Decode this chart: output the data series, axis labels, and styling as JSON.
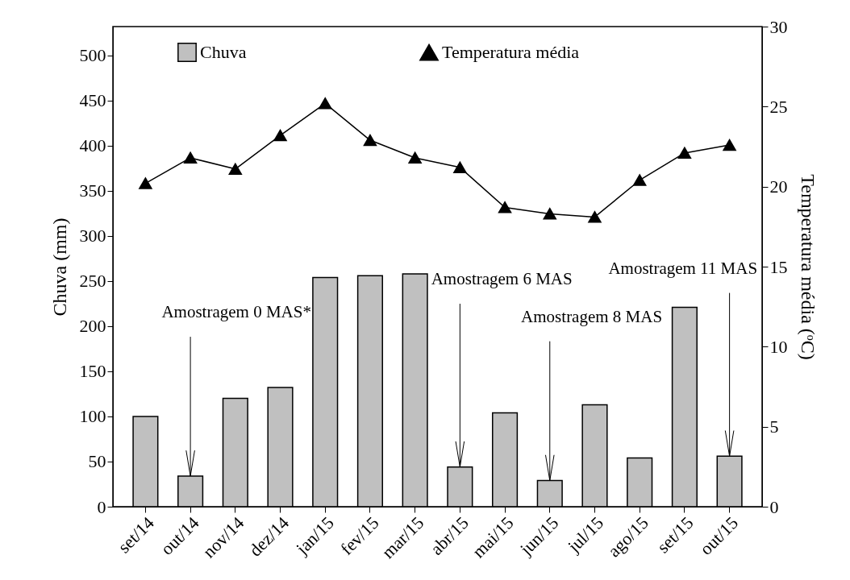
{
  "chart_data": {
    "type": "bar",
    "categories": [
      "set/14",
      "out/14",
      "nov/14",
      "dez/14",
      "jan/15",
      "fev/15",
      "mar/15",
      "abr/15",
      "mai/15",
      "jun/15",
      "jul/15",
      "ago/15",
      "set/15",
      "out/15"
    ],
    "series": [
      {
        "name": "Chuva",
        "color": "#c0c0c0",
        "values": [
          100,
          34,
          120,
          132,
          254,
          256,
          258,
          44,
          104,
          29,
          113,
          54,
          221,
          56
        ]
      },
      {
        "name": "Temperatura média",
        "type": "line",
        "axis": "y2",
        "color": "#000000",
        "marker": "triangle",
        "values": [
          20.2,
          21.8,
          21.1,
          23.2,
          25.2,
          22.9,
          21.8,
          21.2,
          18.7,
          18.3,
          18.1,
          20.4,
          22.1,
          22.6
        ]
      }
    ],
    "ylabel": "Chuva (mm)",
    "y2label": "Temperatura média (ᵒC)",
    "ylim": [
      0,
      532
    ],
    "yticks": [
      0,
      50,
      100,
      150,
      200,
      250,
      300,
      350,
      400,
      450,
      500
    ],
    "y2lim": [
      0,
      30
    ],
    "y2ticks": [
      0,
      5,
      10,
      15,
      20,
      25,
      30
    ],
    "legend": "top",
    "grid": false,
    "annotations": [
      {
        "text": "Amostragem 0 MAS*",
        "x": "out/14",
        "y": 34
      },
      {
        "text": "Amostragem 6 MAS",
        "x": "abr/15",
        "y": 44
      },
      {
        "text": "Amostragem 8 MAS",
        "x": "jun/15",
        "y": 29
      },
      {
        "text": "Amostragem 11 MAS",
        "x": "out/15",
        "y": 56
      }
    ]
  }
}
